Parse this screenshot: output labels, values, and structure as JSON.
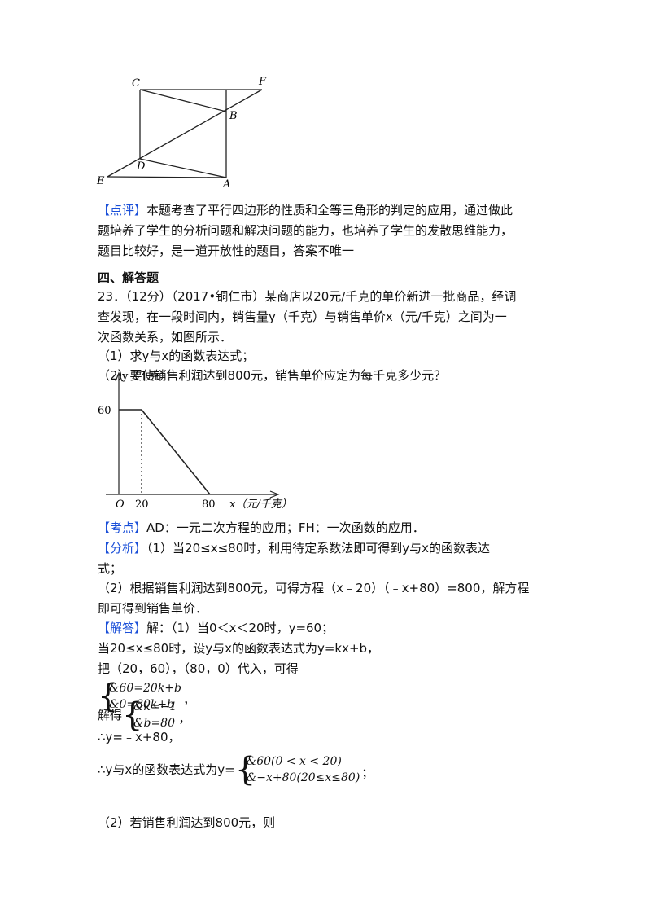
{
  "figure": {
    "labels": {
      "C": "C",
      "F": "F",
      "B": "B",
      "D": "D",
      "E": "E",
      "A": "A"
    }
  },
  "lines1": [
    {
      "tag": "【点评】",
      "text": "本题考查了平行四边形的性质和全等三角形的判定的应用，通过做此"
    },
    {
      "text": "题培养了学生的分析问题和解决问题的能力，也培养了学生的发散思维能力，"
    },
    {
      "text": "题目比较好，是一道开放性的题目，答案不唯一"
    }
  ],
  "section": "四、解答题",
  "problem": [
    {
      "text": "23．（12分）（2017•铜仁市）某商店以20元/千克的单价新进一批商品，经调"
    },
    {
      "text": "查发现，在一段时间内，销售量y（千克）与销售单价x（元/千克）之间为一"
    },
    {
      "text": "次函数关系，如图所示．"
    },
    {
      "text": "（1）求y与x的函数表达式；"
    },
    {
      "text": "（2）要使销售利润达到800元，销售单价应定为每千克多少元？"
    }
  ],
  "graph": {
    "y_label": "y（千克）",
    "x_label": "x（元/千克）",
    "origin": "O",
    "y_tick": "60",
    "x_ticks": [
      "20",
      "80"
    ]
  },
  "lines2": [
    {
      "tag": "【考点】",
      "text": "AD：一元二次方程的应用；FH：一次函数的应用．"
    },
    {
      "tag": "【分析】",
      "text": "（1）当20≤x≤80时，利用待定系数法即可得到y与x的函数表达"
    },
    {
      "text": "式；"
    },
    {
      "text": "（2）根据销售利润达到800元，可得方程（x﹣20）（﹣x+80）=800，解方程"
    },
    {
      "text": "即可得到销售单价．"
    },
    {
      "tag": "【解答】",
      "text": "解：（1）当0＜x＜20时，y=60；"
    },
    {
      "text": "当20≤x≤80时，设y与x的函数表达式为y=kx+b，"
    },
    {
      "text": "把（20，60），（80，0）代入，可得"
    }
  ],
  "system1": {
    "rows": [
      "&60=20k+b",
      "&0=80k+b"
    ],
    "end": "，"
  },
  "system2": {
    "prefix": "解得",
    "rows": [
      "&k=−1",
      "&b=80"
    ],
    "end": "，"
  },
  "result": "∴y=﹣x+80，",
  "system3": {
    "prefix": "∴y与x的函数表达式为y=",
    "rows": [
      "&60(0 < x < 20)",
      "&−x+80(20≤x≤80)"
    ],
    "end": "；"
  },
  "last": "（2）若销售利润达到800元，则"
}
